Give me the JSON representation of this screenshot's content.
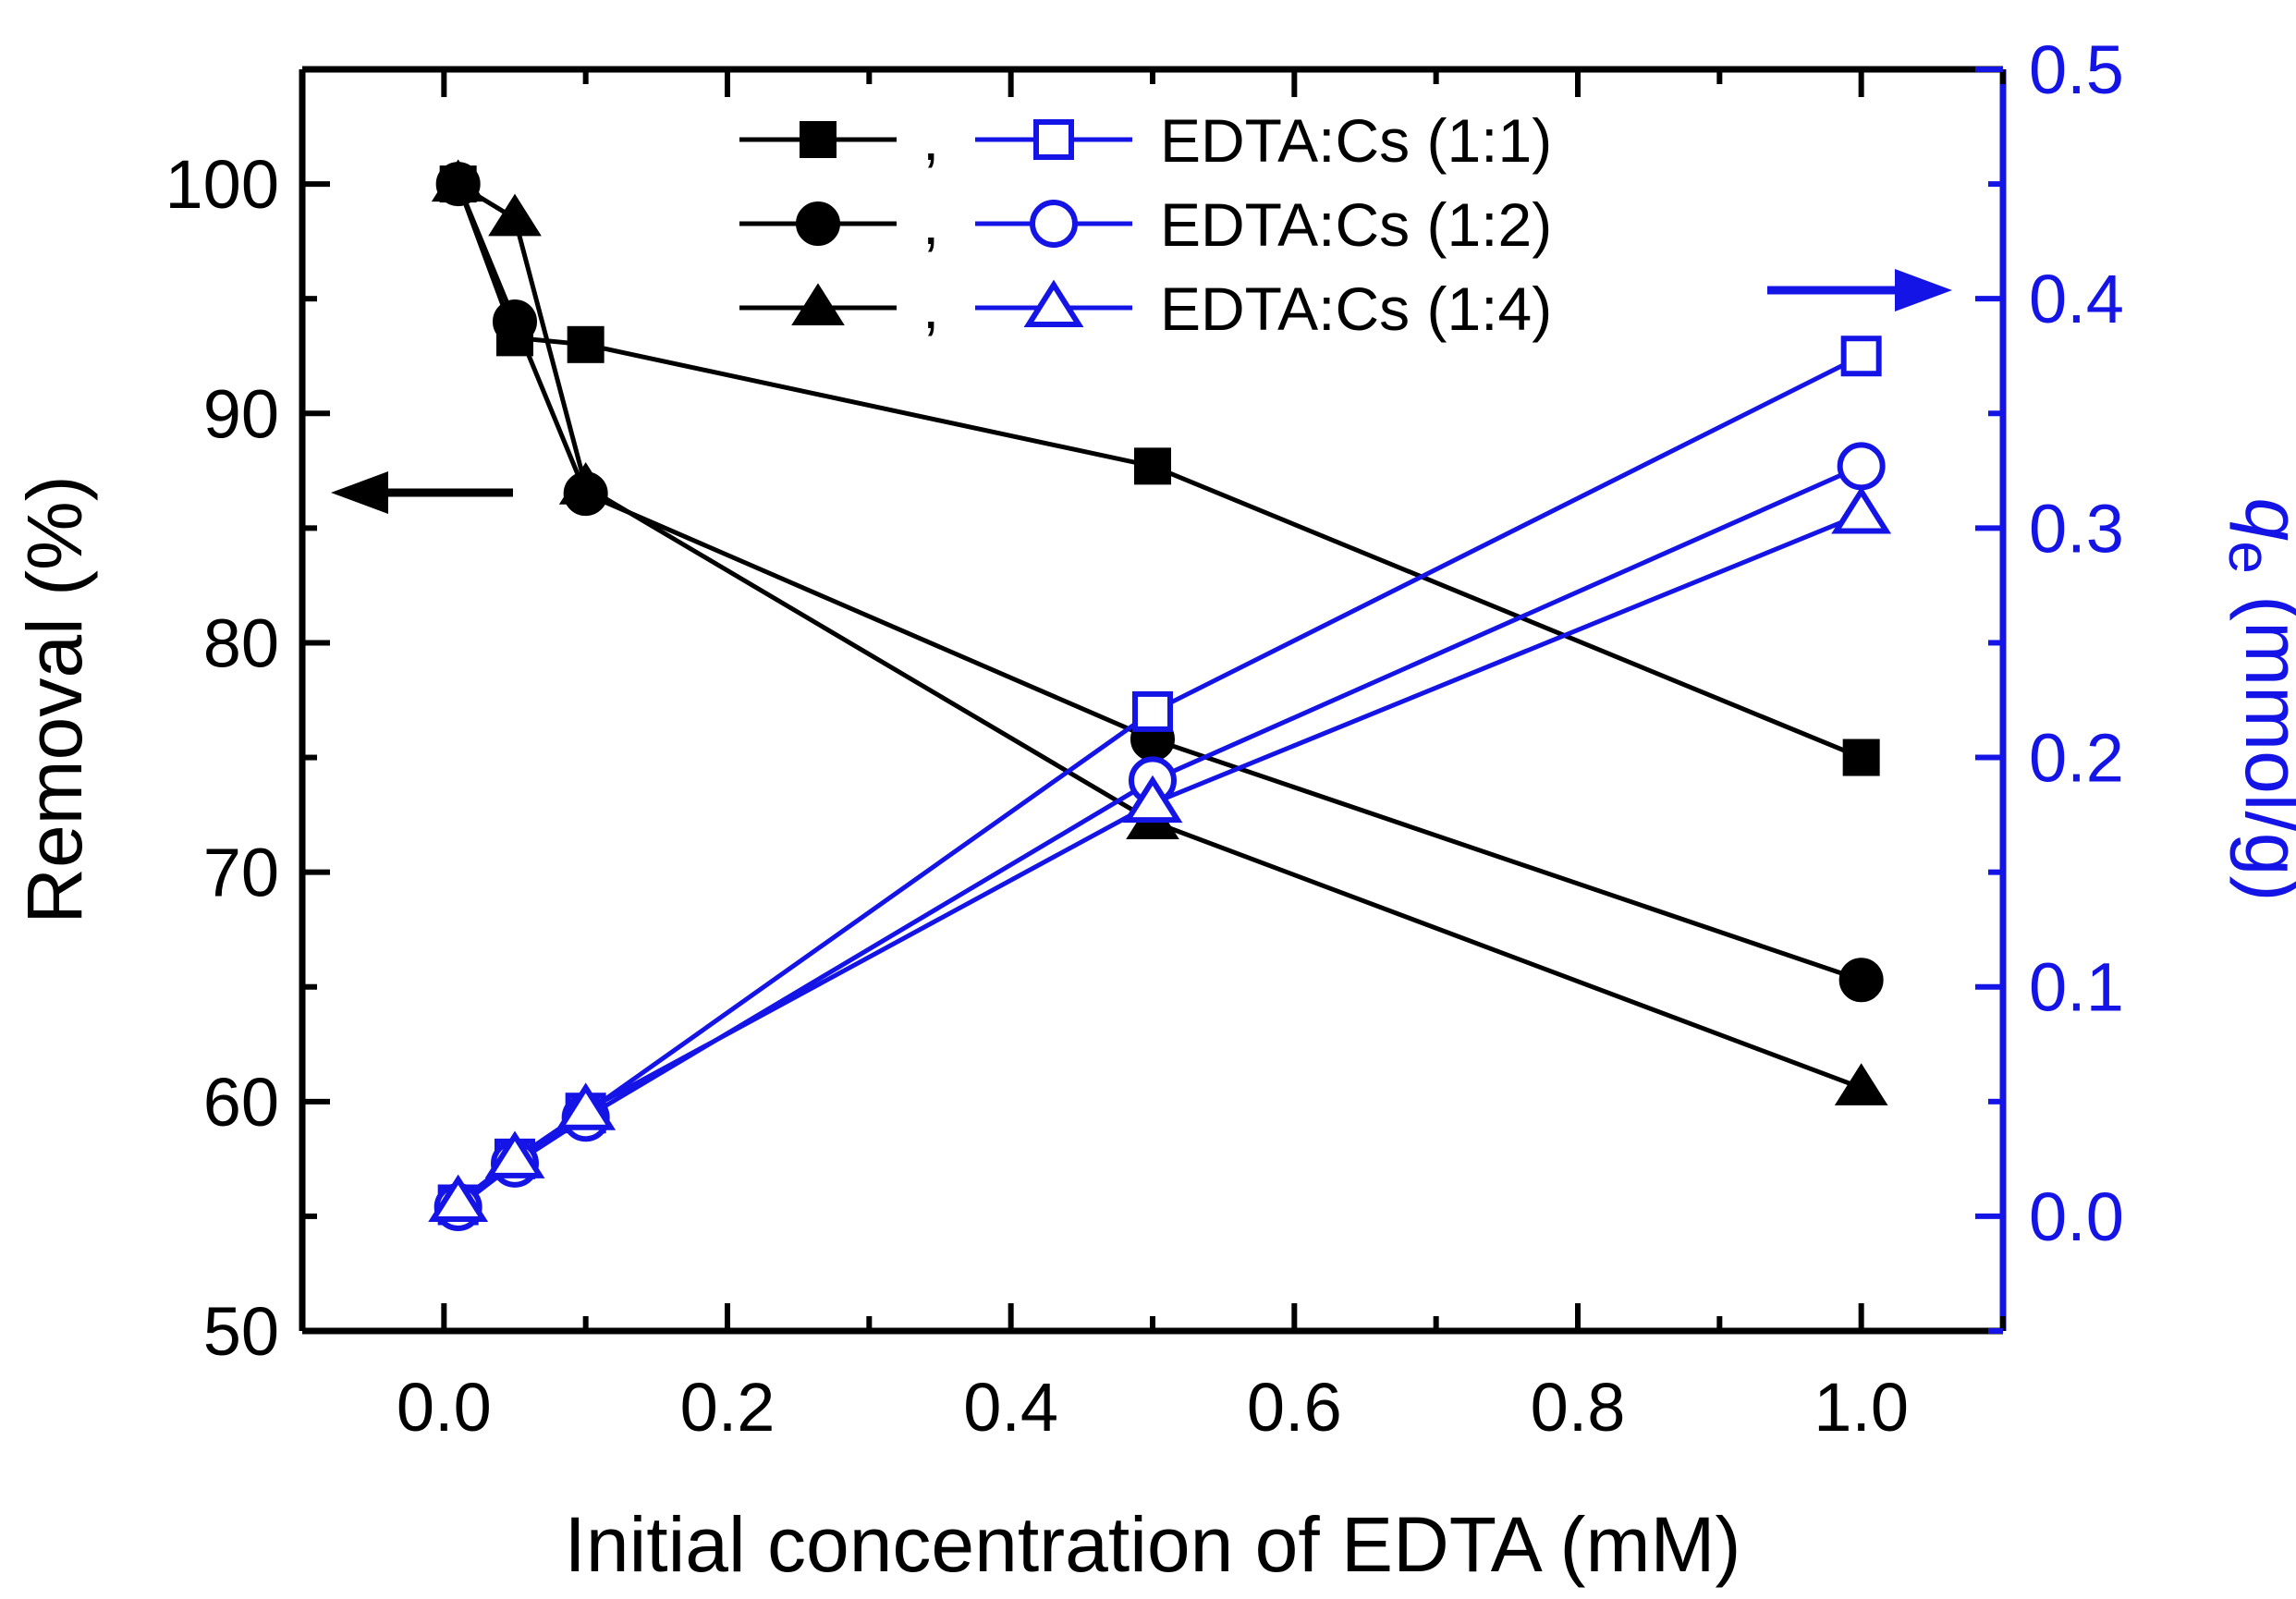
{
  "chart_data": {
    "type": "line",
    "xlabel": "Initial concentration of EDTA (mM)",
    "ylabel_left": "Removal (%)",
    "ylabel_right_symbol": "q",
    "ylabel_right_subscript": "e",
    "ylabel_right_unit": " (mmol/g)",
    "xlim": [
      -0.1,
      1.1
    ],
    "ylim_left": [
      50,
      105
    ],
    "ylim_right": [
      -0.05,
      0.5
    ],
    "x_ticks": [
      "0.0",
      "0.2",
      "0.4",
      "0.6",
      "0.8",
      "1.0"
    ],
    "y_left_ticks": [
      "50",
      "60",
      "70",
      "80",
      "90",
      "100"
    ],
    "y_right_ticks": [
      "0.0",
      "0.1",
      "0.2",
      "0.3",
      "0.4",
      "0.5"
    ],
    "x": [
      0.01,
      0.05,
      0.1,
      0.5,
      1.0
    ],
    "legend_placement": "top-center",
    "legend_separator": ",",
    "colors": {
      "left_axis": "#000000",
      "right_axis": "#1414e6"
    },
    "series": [
      {
        "name": "EDTA:Cs (1:1)",
        "marker": "square",
        "axis": "left",
        "values": [
          100,
          93.3,
          93.0,
          87.7,
          75.0
        ]
      },
      {
        "name": "EDTA:Cs (1:2)",
        "marker": "circle",
        "axis": "left",
        "values": [
          100,
          94.0,
          86.5,
          75.8,
          65.3
        ]
      },
      {
        "name": "EDTA:Cs (1:4)",
        "marker": "triangle",
        "axis": "left",
        "values": [
          100,
          98.5,
          86.8,
          72.2,
          60.6
        ]
      },
      {
        "name": "EDTA:Cs (1:1)",
        "marker": "square",
        "axis": "right",
        "values": [
          0.005,
          0.025,
          0.045,
          0.22,
          0.375
        ]
      },
      {
        "name": "EDTA:Cs (1:2)",
        "marker": "circle",
        "axis": "right",
        "values": [
          0.004,
          0.023,
          0.043,
          0.19,
          0.327
        ]
      },
      {
        "name": "EDTA:Cs (1:4)",
        "marker": "triangle",
        "axis": "right",
        "values": [
          0.006,
          0.025,
          0.046,
          0.18,
          0.306
        ]
      }
    ]
  }
}
